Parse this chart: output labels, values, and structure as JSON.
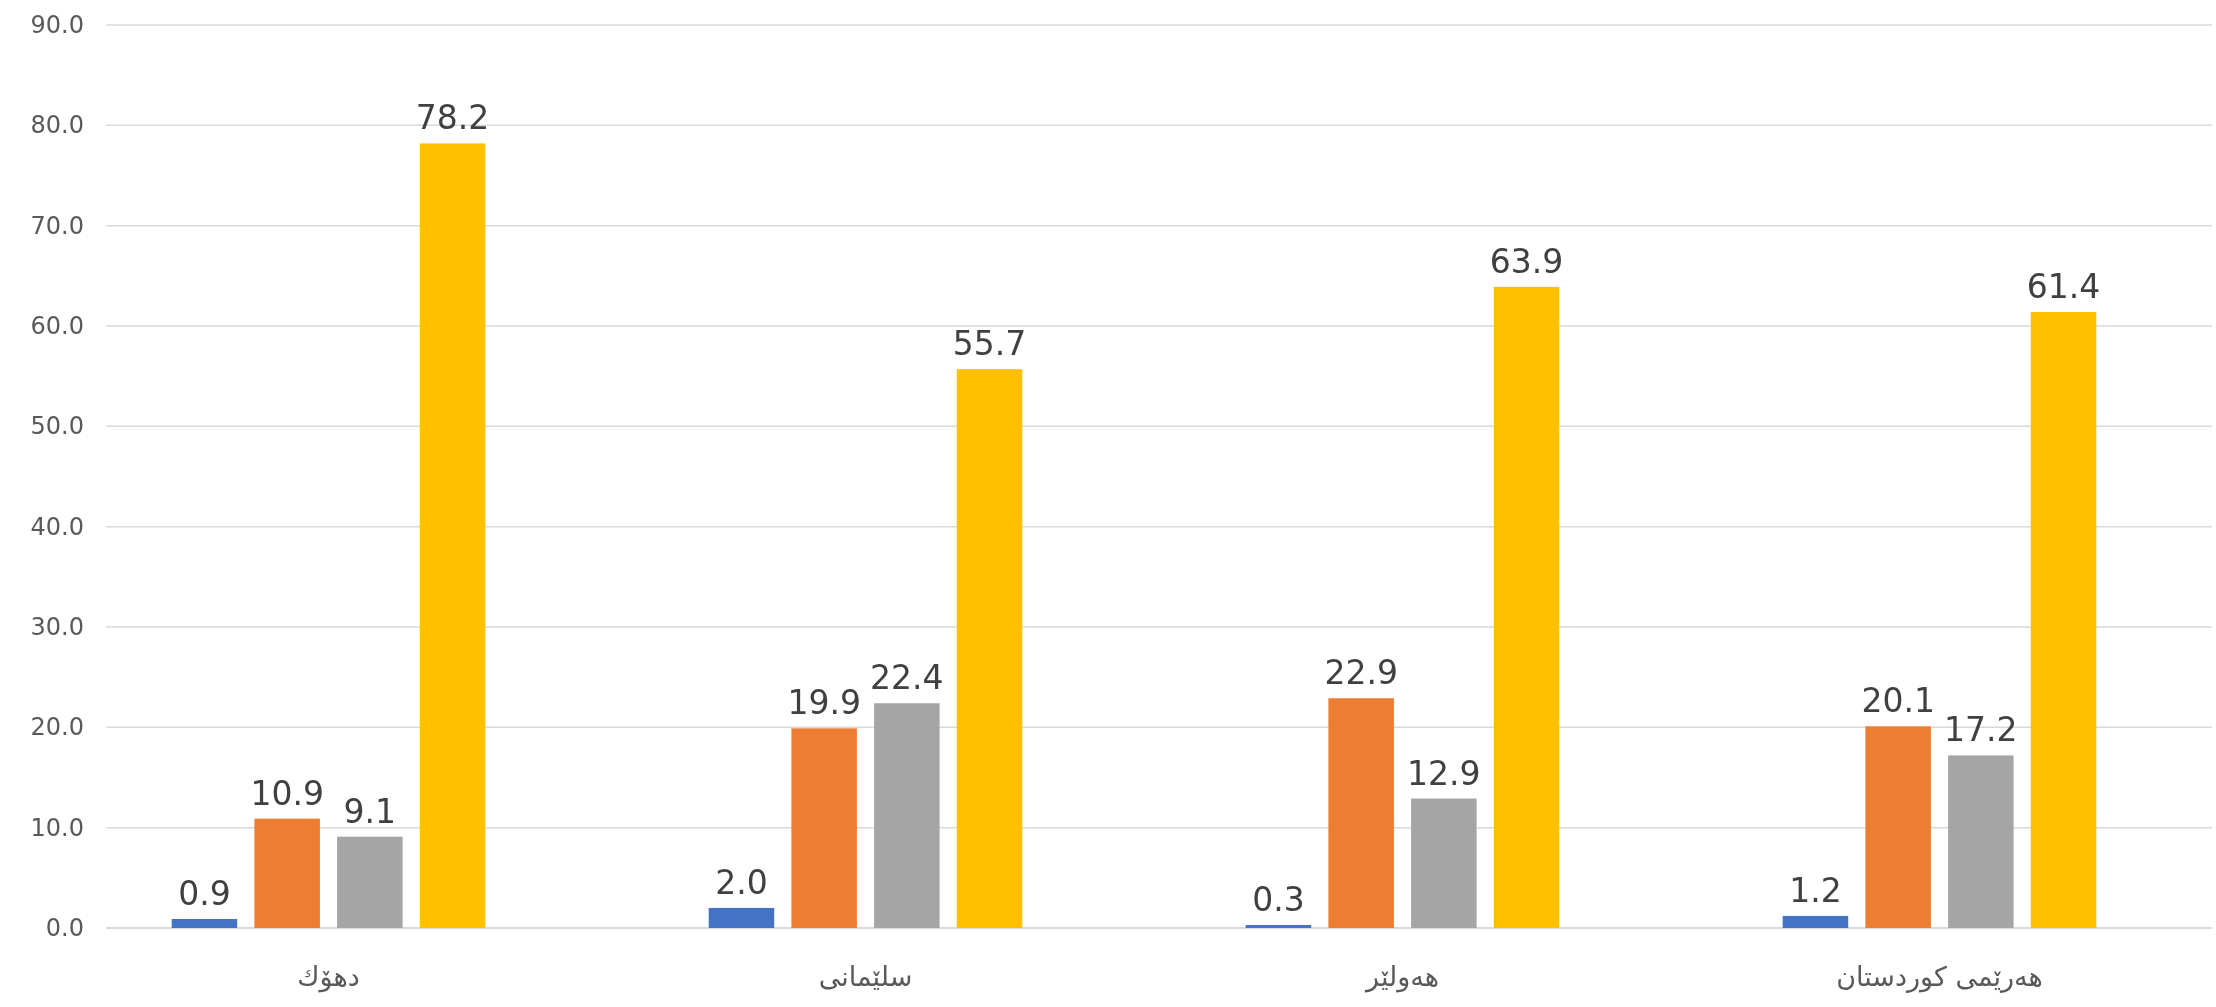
{
  "chart_data": {
    "type": "bar",
    "categories": [
      "دهۆك",
      "سلێمانی",
      "هەولێر",
      "هەرێمی کوردستان"
    ],
    "series": [
      {
        "color": "#4472c4",
        "values": [
          0.9,
          2.0,
          0.3,
          1.2
        ],
        "value_labels": [
          "0.9",
          "2.0",
          "0.3",
          "1.2"
        ]
      },
      {
        "color": "#ed7d31",
        "values": [
          10.9,
          19.9,
          22.9,
          20.1
        ],
        "value_labels": [
          "10.9",
          "19.9",
          "22.9",
          "20.1"
        ]
      },
      {
        "color": "#a5a5a5",
        "values": [
          9.1,
          22.4,
          12.9,
          17.2
        ],
        "value_labels": [
          "9.1",
          "22.4",
          "12.9",
          "17.2"
        ]
      },
      {
        "color": "#ffc000",
        "values": [
          78.2,
          55.7,
          63.9,
          61.4
        ],
        "value_labels": [
          "78.2",
          "55.7",
          "63.9",
          "61.4"
        ]
      }
    ],
    "ylim": [
      0,
      90
    ],
    "yticks": [
      {
        "value": 0,
        "label": "0.0"
      },
      {
        "value": 10,
        "label": "10.0"
      },
      {
        "value": 20,
        "label": "20.0"
      },
      {
        "value": 30,
        "label": "30.0"
      },
      {
        "value": 40,
        "label": "40.0"
      },
      {
        "value": 50,
        "label": "50.0"
      },
      {
        "value": 60,
        "label": "60.0"
      },
      {
        "value": 70,
        "label": "70.0"
      },
      {
        "value": 80,
        "label": "80.0"
      },
      {
        "value": 90,
        "label": "90.0"
      }
    ],
    "grid": "y"
  }
}
